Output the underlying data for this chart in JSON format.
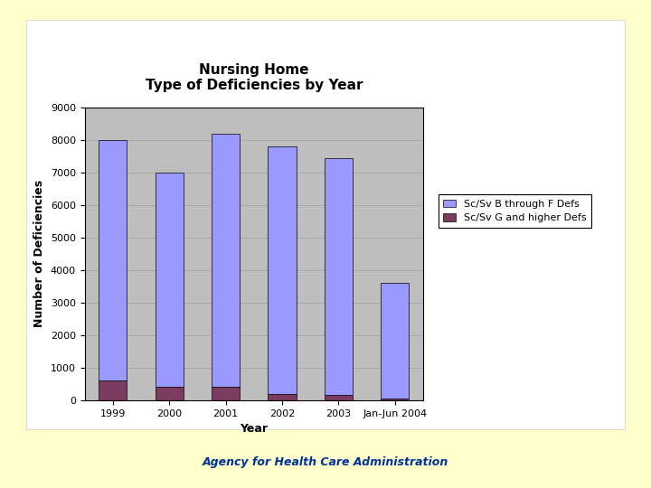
{
  "categories": [
    "1999",
    "2000",
    "2001",
    "2002",
    "2003",
    "Jan-Jun 2004"
  ],
  "blue_values": [
    7400,
    6600,
    7800,
    7600,
    7300,
    3550
  ],
  "red_values": [
    600,
    400,
    400,
    200,
    150,
    50
  ],
  "title_line1": "Nursing Home",
  "title_line2": "Type of Deficiencies by Year",
  "xlabel": "Year",
  "ylabel": "Number of Deficiencies",
  "ylim": [
    0,
    9000
  ],
  "yticks": [
    0,
    1000,
    2000,
    3000,
    4000,
    5000,
    6000,
    7000,
    8000,
    9000
  ],
  "ytick_labels": [
    "0",
    "1000",
    "2000",
    "3000",
    "4000",
    "5000",
    "6000",
    "7000",
    "8000",
    "9000"
  ],
  "blue_color": "#9999FF",
  "red_color": "#7B3B5E",
  "legend_blue": "Sc/Sv B through F Defs",
  "legend_red": "Sc/Sv G and higher Defs",
  "plot_bg_color": "#BEBEBE",
  "white_panel_color": "#FFFFFF",
  "outer_background": "#FFFFCC",
  "bar_edge_color": "#000000",
  "title_fontsize": 11,
  "axis_label_fontsize": 9,
  "tick_fontsize": 8,
  "legend_fontsize": 8,
  "footer_text": "Agency for Health Care Administration",
  "footer_fontsize": 9,
  "grid_color": "#AAAAAA"
}
